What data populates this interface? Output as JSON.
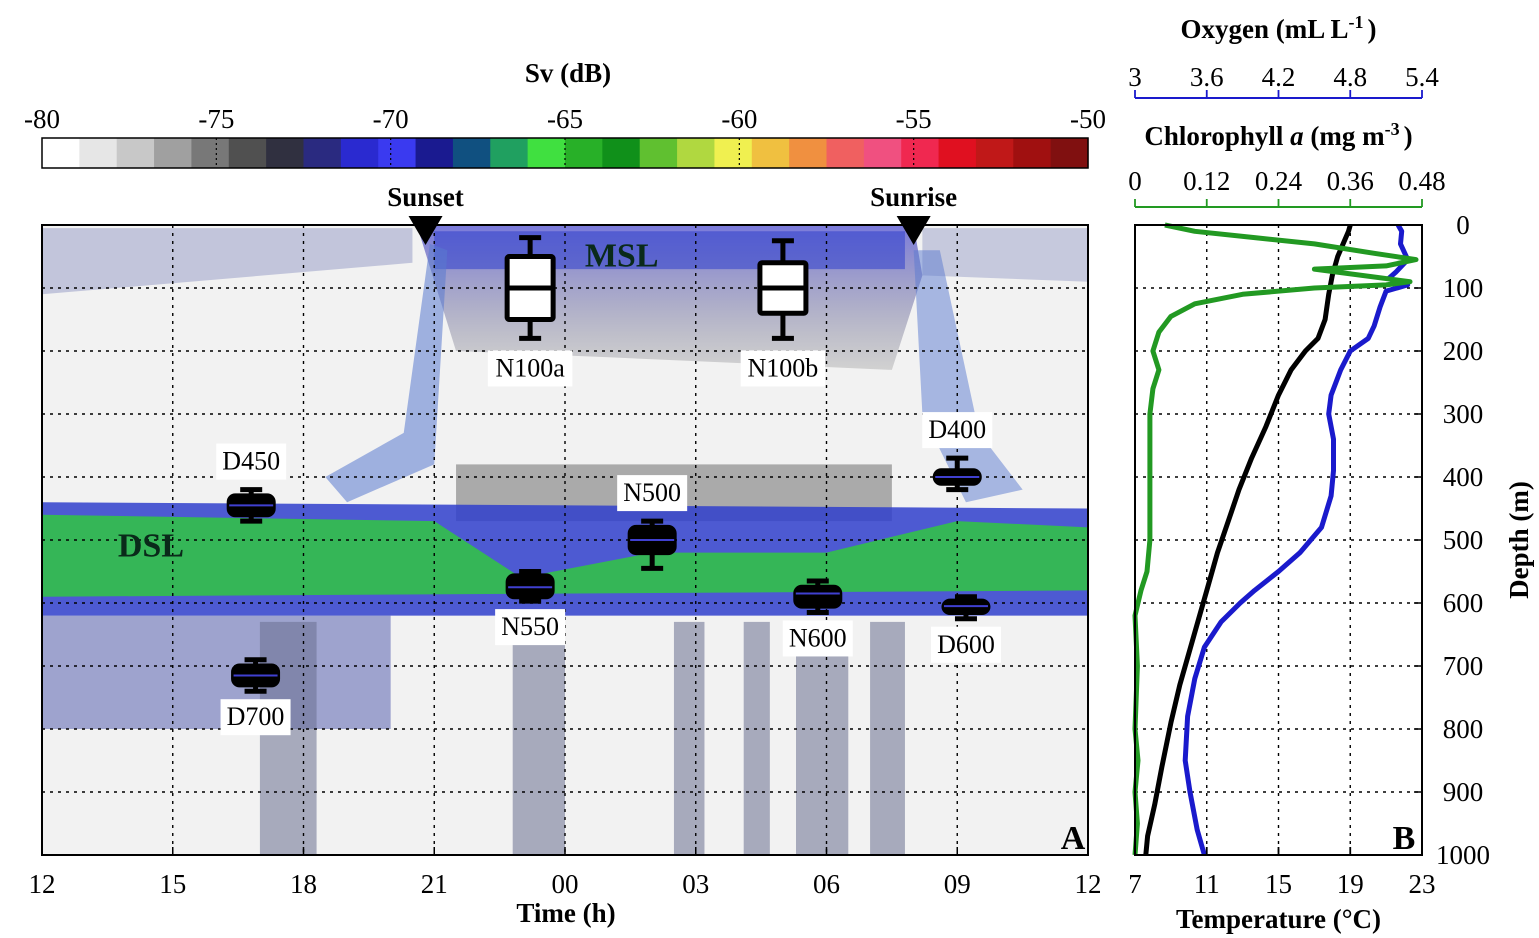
{
  "colors": {
    "oxygen": "#1a1acc",
    "chlorophyll": "#229922",
    "temperature": "#000000",
    "echogram_dsl": "#2ed62e",
    "echogram_blue": "#3040cc"
  },
  "chart_data": [
    {
      "type": "heatmap",
      "panel": "A",
      "title": "",
      "xlabel": "Time (h)",
      "ylabel": "",
      "x_ticks": [
        "12",
        "15",
        "18",
        "21",
        "00",
        "03",
        "06",
        "09",
        "12"
      ],
      "x_tick_hours": [
        12,
        15,
        18,
        21,
        24,
        27,
        30,
        33,
        36
      ],
      "xlim_hours": [
        12,
        36
      ],
      "ylim_depth_m": [
        0,
        1000
      ],
      "y_grid_depths": [
        100,
        200,
        300,
        400,
        500,
        600,
        700,
        800,
        900
      ],
      "grid": true,
      "colorbar": {
        "title": "Sv (dB)",
        "ticks": [
          "-80",
          "-75",
          "-70",
          "-65",
          "-60",
          "-55",
          "-50"
        ],
        "range": [
          -80,
          -50
        ],
        "colors": [
          "#ffffff",
          "#e6e6e6",
          "#c8c8c8",
          "#a0a0a0",
          "#787878",
          "#505050",
          "#303040",
          "#2a2a80",
          "#2a2ad0",
          "#3a3af0",
          "#1a1a90",
          "#105080",
          "#20a060",
          "#40e040",
          "#28b028",
          "#10901a",
          "#60c030",
          "#b0d840",
          "#f0f050",
          "#f0c040",
          "#f09040",
          "#f06060",
          "#f05080",
          "#f02850",
          "#e01020",
          "#c01818",
          "#a01010",
          "#801010"
        ]
      },
      "events": [
        {
          "label": "Sunset",
          "hour": 20.8
        },
        {
          "label": "Sunrise",
          "hour": 32.0
        }
      ],
      "layers": [
        {
          "label": "MSL",
          "hour": 25.3,
          "depth": 50
        },
        {
          "label": "DSL",
          "hour": 14.5,
          "depth": 510
        }
      ],
      "boxplots": [
        {
          "label": "N100a",
          "hour": 23.2,
          "min": 20,
          "q1": 50,
          "median": 100,
          "q3": 150,
          "max": 180
        },
        {
          "label": "N100b",
          "hour": 29.0,
          "min": 25,
          "q1": 60,
          "median": 100,
          "q3": 140,
          "max": 180
        },
        {
          "label": "D450",
          "hour": 16.8,
          "min": 420,
          "q1": 430,
          "median": 445,
          "q3": 460,
          "max": 470
        },
        {
          "label": "D400",
          "hour": 33.0,
          "min": 370,
          "q1": 390,
          "median": 400,
          "q3": 410,
          "max": 420
        },
        {
          "label": "N500",
          "hour": 26.0,
          "min": 470,
          "q1": 480,
          "median": 500,
          "q3": 520,
          "max": 545
        },
        {
          "label": "N550",
          "hour": 23.2,
          "min": 550,
          "q1": 557,
          "median": 575,
          "q3": 590,
          "max": 597
        },
        {
          "label": "N600",
          "hour": 29.8,
          "min": 565,
          "q1": 575,
          "median": 585,
          "q3": 605,
          "max": 615
        },
        {
          "label": "D600",
          "hour": 33.2,
          "min": 590,
          "q1": 597,
          "median": 605,
          "q3": 615,
          "max": 625
        },
        {
          "label": "D700",
          "hour": 16.9,
          "min": 690,
          "q1": 700,
          "median": 715,
          "q3": 730,
          "max": 740
        }
      ],
      "panel_label": "A"
    },
    {
      "type": "line",
      "panel": "B",
      "ylabel": "Depth (m)",
      "ylim": [
        0,
        1000
      ],
      "y_ticks": [
        "0",
        "100",
        "200",
        "300",
        "400",
        "500",
        "600",
        "700",
        "800",
        "900",
        "1000"
      ],
      "grid": true,
      "panel_label": "B",
      "axes": [
        {
          "name": "Temperature",
          "label": "Temperature (°C)",
          "position": "bottom",
          "ticks": [
            "7",
            "11",
            "15",
            "19",
            "23"
          ],
          "lim": [
            7,
            23
          ]
        },
        {
          "name": "Oxygen",
          "label": "Oxygen (mL L",
          "label_exp": "-1",
          "label_end": ")",
          "position": "top-outer",
          "ticks": [
            "3",
            "3.6",
            "4.2",
            "4.8",
            "5.4"
          ],
          "lim": [
            3,
            5.4
          ]
        },
        {
          "name": "Chlorophyll",
          "label": "Chlorophyll ",
          "label_italic": "a",
          "label_mid": " (mg m",
          "label_exp": "-3",
          "label_end": ")",
          "position": "top-inner",
          "ticks": [
            "0",
            "0.12",
            "0.24",
            "0.36",
            "0.48"
          ],
          "lim": [
            0,
            0.48
          ]
        }
      ],
      "series": [
        {
          "name": "Temperature",
          "axis": "Temperature",
          "points": [
            [
              19.0,
              0
            ],
            [
              18.9,
              10
            ],
            [
              18.6,
              30
            ],
            [
              18.3,
              50
            ],
            [
              18.0,
              80
            ],
            [
              17.8,
              110
            ],
            [
              17.6,
              150
            ],
            [
              17.2,
              180
            ],
            [
              16.5,
              200
            ],
            [
              15.7,
              230
            ],
            [
              15.0,
              270
            ],
            [
              14.3,
              320
            ],
            [
              13.5,
              370
            ],
            [
              12.8,
              420
            ],
            [
              12.2,
              470
            ],
            [
              11.6,
              520
            ],
            [
              11.0,
              580
            ],
            [
              10.6,
              620
            ],
            [
              10.0,
              680
            ],
            [
              9.5,
              730
            ],
            [
              9.0,
              790
            ],
            [
              8.5,
              860
            ],
            [
              8.1,
              920
            ],
            [
              7.7,
              970
            ],
            [
              7.6,
              1000
            ]
          ]
        },
        {
          "name": "Oxygen",
          "axis": "Oxygen",
          "points": [
            [
              5.2,
              0
            ],
            [
              5.23,
              10
            ],
            [
              5.22,
              30
            ],
            [
              5.28,
              55
            ],
            [
              5.18,
              75
            ],
            [
              5.12,
              85
            ],
            [
              5.28,
              95
            ],
            [
              5.1,
              105
            ],
            [
              5.05,
              130
            ],
            [
              5.0,
              160
            ],
            [
              4.95,
              180
            ],
            [
              4.8,
              200
            ],
            [
              4.72,
              230
            ],
            [
              4.64,
              270
            ],
            [
              4.62,
              300
            ],
            [
              4.66,
              340
            ],
            [
              4.66,
              390
            ],
            [
              4.64,
              430
            ],
            [
              4.56,
              480
            ],
            [
              4.38,
              520
            ],
            [
              4.2,
              550
            ],
            [
              4.0,
              580
            ],
            [
              3.88,
              600
            ],
            [
              3.72,
              630
            ],
            [
              3.58,
              670
            ],
            [
              3.5,
              720
            ],
            [
              3.44,
              780
            ],
            [
              3.42,
              850
            ],
            [
              3.46,
              900
            ],
            [
              3.52,
              960
            ],
            [
              3.58,
              1000
            ]
          ]
        },
        {
          "name": "Chlorophyll",
          "axis": "Chlorophyll",
          "points": [
            [
              0.05,
              0
            ],
            [
              0.1,
              10
            ],
            [
              0.2,
              20
            ],
            [
              0.3,
              30
            ],
            [
              0.4,
              45
            ],
            [
              0.47,
              55
            ],
            [
              0.42,
              65
            ],
            [
              0.3,
              70
            ],
            [
              0.46,
              90
            ],
            [
              0.42,
              95
            ],
            [
              0.3,
              100
            ],
            [
              0.18,
              110
            ],
            [
              0.1,
              125
            ],
            [
              0.06,
              145
            ],
            [
              0.04,
              170
            ],
            [
              0.03,
              200
            ],
            [
              0.04,
              230
            ],
            [
              0.03,
              260
            ],
            [
              0.025,
              300
            ],
            [
              0.025,
              400
            ],
            [
              0.025,
              500
            ],
            [
              0.02,
              550
            ],
            [
              0.01,
              580
            ],
            [
              0.0,
              620
            ],
            [
              0.004,
              700
            ],
            [
              0.0,
              800
            ],
            [
              0.005,
              850
            ],
            [
              0.0,
              900
            ],
            [
              0.004,
              950
            ],
            [
              0.0,
              1000
            ]
          ]
        }
      ]
    }
  ]
}
